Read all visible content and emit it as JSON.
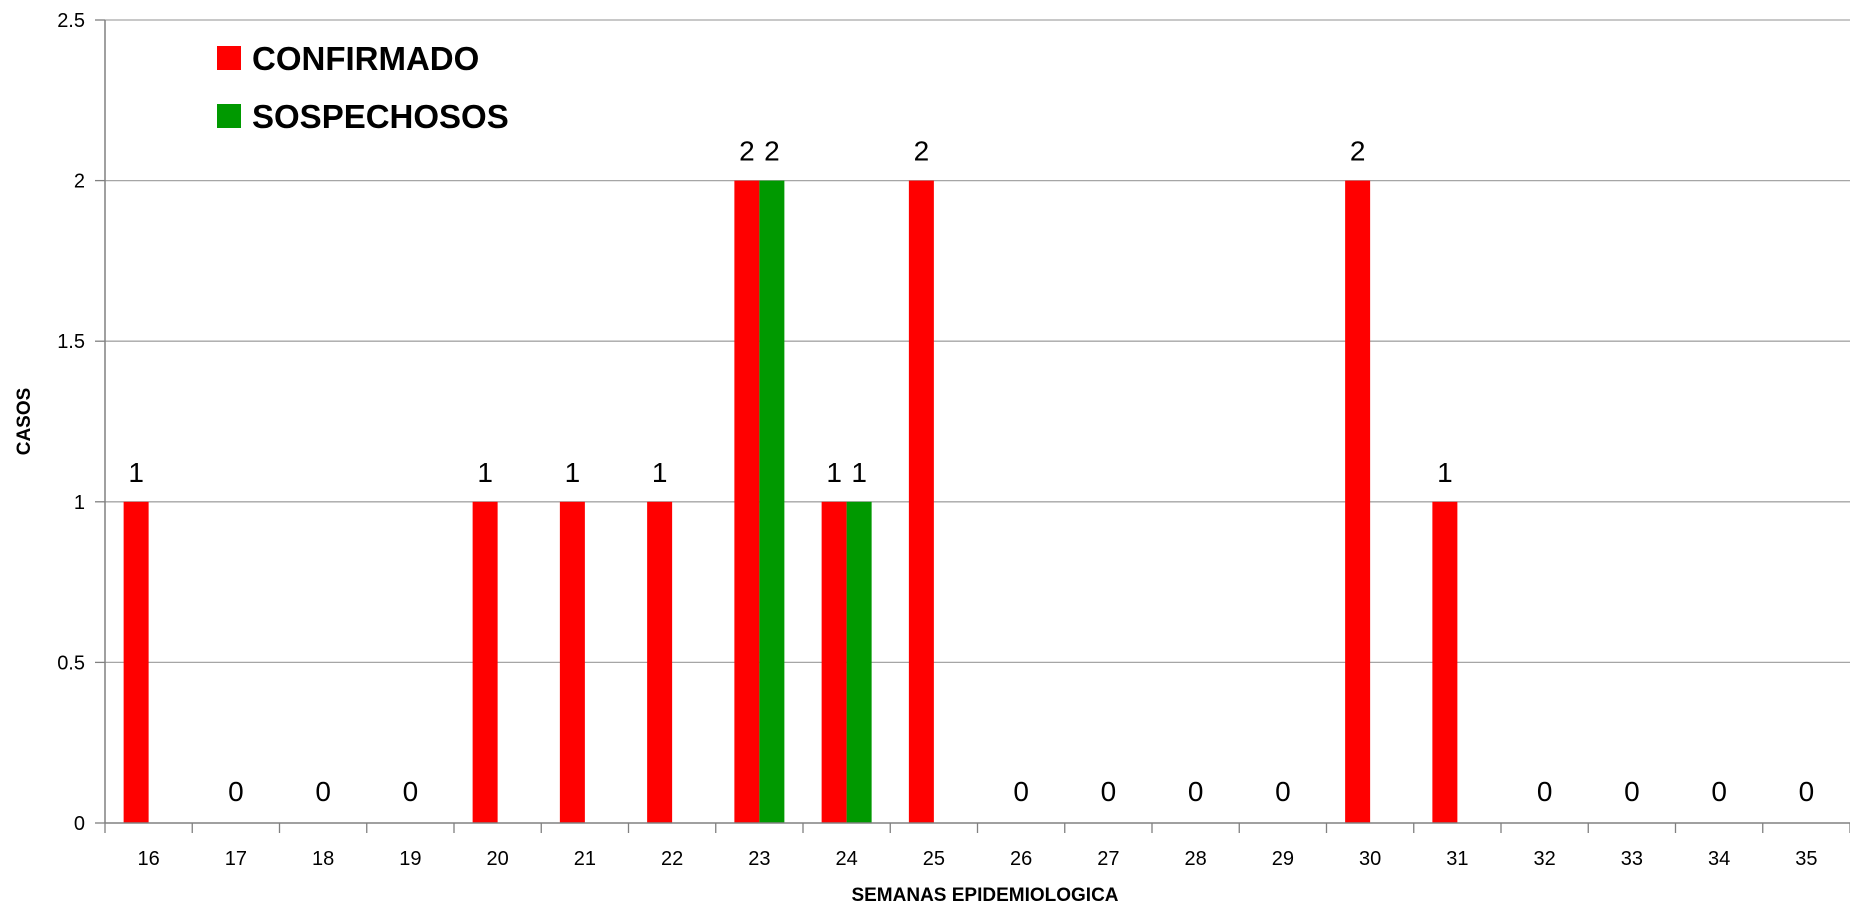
{
  "chart_data": {
    "type": "bar",
    "title": "",
    "xlabel": "SEMANAS EPIDEMIOLOGICA",
    "ylabel": "CASOS",
    "ylim": [
      0,
      2.5
    ],
    "yticks": [
      "0",
      "0.5",
      "1",
      "1.5",
      "2",
      "2.5"
    ],
    "grid": true,
    "legend_position": "top-left",
    "categories": [
      "16",
      "17",
      "18",
      "19",
      "20",
      "21",
      "22",
      "23",
      "24",
      "25",
      "26",
      "27",
      "28",
      "29",
      "30",
      "31",
      "32",
      "33",
      "34",
      "35"
    ],
    "series": [
      {
        "name": "CONFIRMADO",
        "color": "#ff0000",
        "values": [
          1,
          0,
          0,
          0,
          1,
          1,
          1,
          2,
          1,
          2,
          0,
          0,
          0,
          0,
          2,
          1,
          0,
          0,
          0,
          0
        ],
        "labels": [
          "1",
          "0",
          "0",
          "0",
          "1",
          "1",
          "1",
          "2",
          "1",
          "2",
          "0",
          "0",
          "0",
          "0",
          "2",
          "1",
          "0",
          "0",
          "0",
          "0"
        ]
      },
      {
        "name": "SOSPECHOSOS",
        "color": "#009900",
        "values": [
          0,
          0,
          0,
          0,
          0,
          0,
          0,
          2,
          1,
          0,
          0,
          0,
          0,
          0,
          0,
          0,
          0,
          0,
          0,
          0
        ],
        "labels": [
          "",
          "",
          "",
          "",
          "",
          "",
          "",
          "2",
          "1",
          "",
          "",
          "",
          "",
          "",
          "",
          "",
          "",
          "",
          "",
          ""
        ]
      }
    ]
  }
}
